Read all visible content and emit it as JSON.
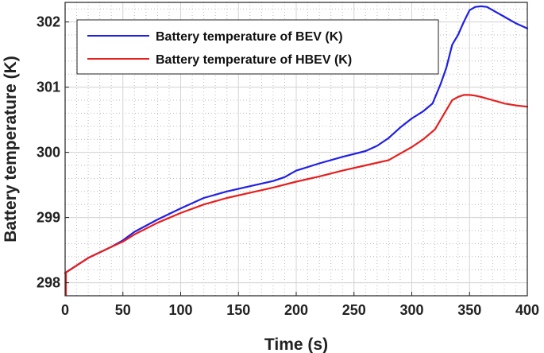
{
  "chart_data": {
    "type": "line",
    "xlabel": "Time (s)",
    "ylabel": "Battery temperature (K)",
    "xlim": [
      0,
      400
    ],
    "ylim": [
      297.8,
      302.3
    ],
    "xticks": [
      0,
      50,
      100,
      150,
      200,
      250,
      300,
      350,
      400
    ],
    "yticks": [
      298,
      299,
      300,
      301,
      302
    ],
    "xtick_labels": [
      "0",
      "50",
      "100",
      "150",
      "200",
      "250",
      "300",
      "350",
      "400"
    ],
    "ytick_labels": [
      "298",
      "299",
      "300",
      "301",
      "302"
    ],
    "grid": true,
    "minor_grid": true,
    "legend_position": "top-left",
    "series": [
      {
        "name": "Battery temperature of BEV (K)",
        "color": "#1f1fe6",
        "x": [
          0,
          20,
          40,
          50,
          60,
          80,
          100,
          120,
          140,
          160,
          180,
          190,
          200,
          220,
          240,
          260,
          270,
          280,
          290,
          300,
          310,
          318,
          325,
          330,
          335,
          340,
          345,
          350,
          355,
          360,
          365,
          370,
          380,
          390,
          400
        ],
        "y": [
          298.15,
          298.38,
          298.55,
          298.65,
          298.78,
          298.97,
          299.14,
          299.3,
          299.4,
          299.48,
          299.56,
          299.62,
          299.72,
          299.83,
          299.93,
          300.02,
          300.1,
          300.22,
          300.38,
          300.52,
          300.63,
          300.75,
          301.05,
          301.3,
          301.65,
          301.8,
          302.0,
          302.18,
          302.23,
          302.24,
          302.23,
          302.18,
          302.08,
          301.98,
          301.9
        ]
      },
      {
        "name": "Battery temperature of HBEV (K)",
        "color": "#e61f1f",
        "x": [
          0,
          20,
          40,
          50,
          60,
          80,
          100,
          120,
          140,
          160,
          180,
          200,
          220,
          240,
          260,
          280,
          290,
          300,
          310,
          320,
          330,
          335,
          340,
          345,
          350,
          355,
          360,
          370,
          380,
          390,
          400
        ],
        "y": [
          298.15,
          298.38,
          298.55,
          298.63,
          298.74,
          298.92,
          299.07,
          299.2,
          299.3,
          299.38,
          299.46,
          299.55,
          299.63,
          299.72,
          299.8,
          299.88,
          299.98,
          300.08,
          300.2,
          300.35,
          300.65,
          300.8,
          300.85,
          300.88,
          300.88,
          300.87,
          300.85,
          300.8,
          300.75,
          300.72,
          300.7
        ]
      }
    ]
  }
}
